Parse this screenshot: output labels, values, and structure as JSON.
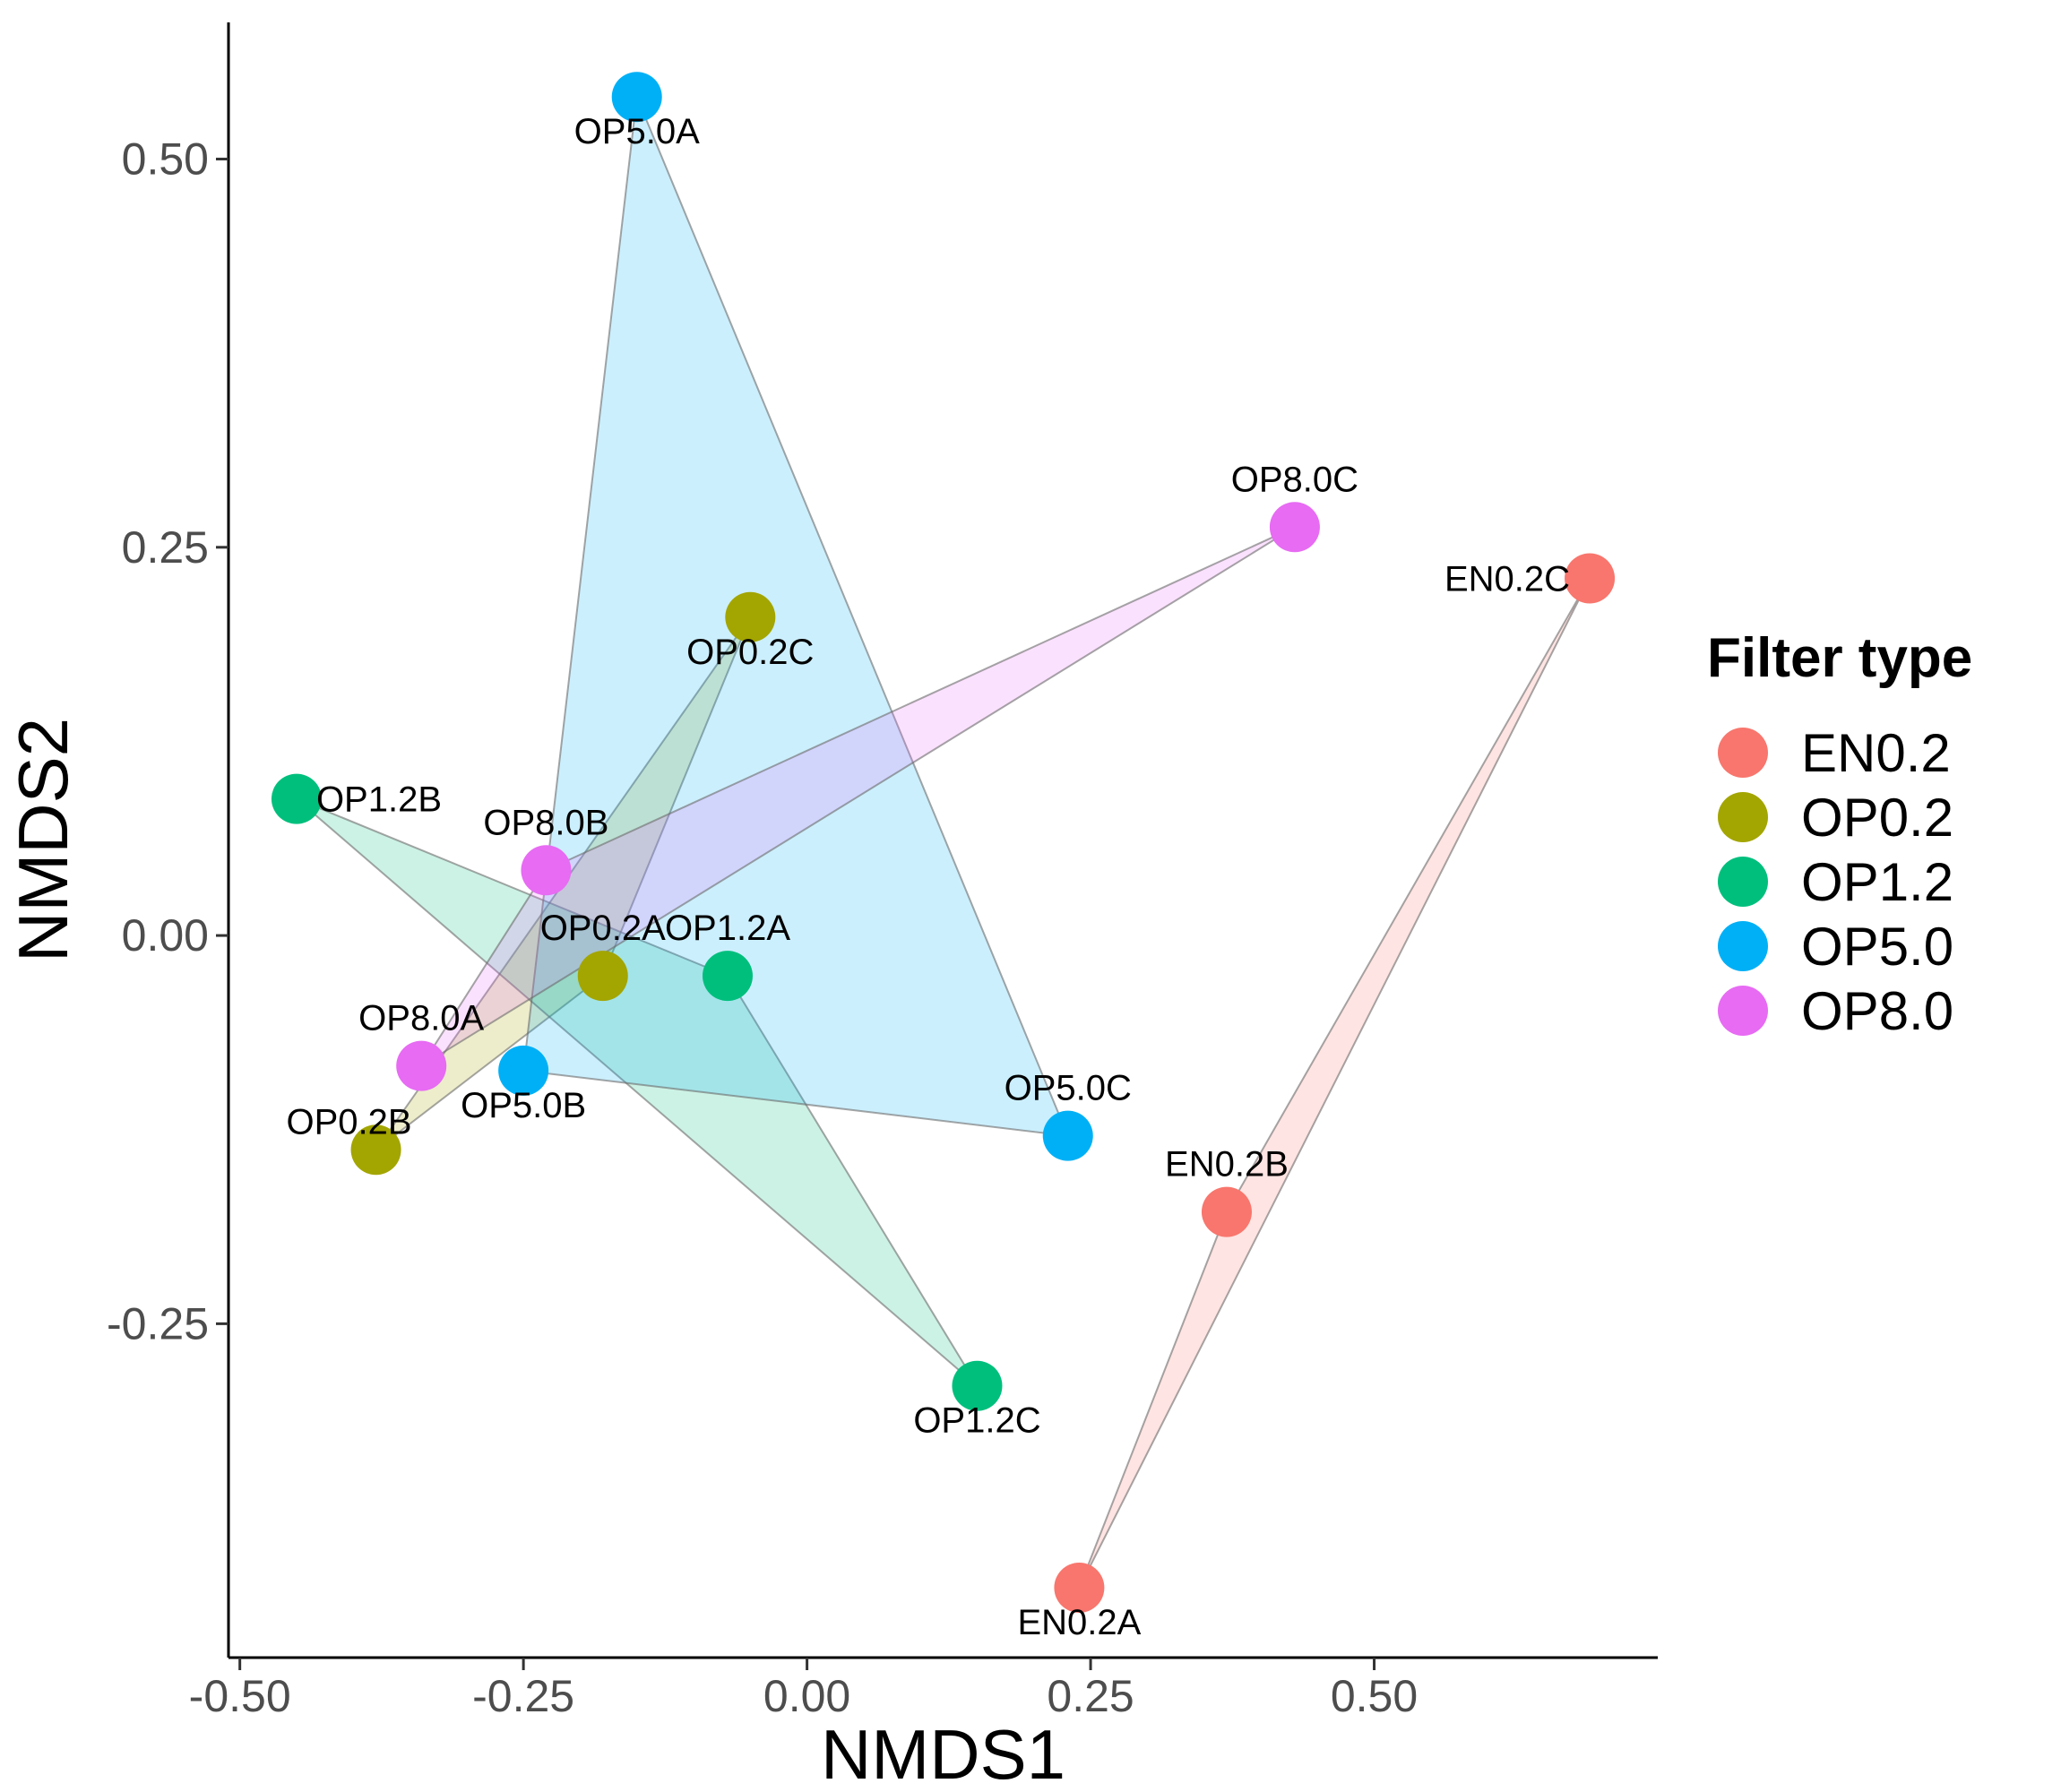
{
  "chart_data": {
    "type": "scatter",
    "xlabel": "NMDS1",
    "ylabel": "NMDS2",
    "xlim": [
      -0.51,
      0.75
    ],
    "ylim": [
      -0.465,
      0.588
    ],
    "x_ticks": [
      -0.5,
      -0.25,
      0.0,
      0.25,
      0.5
    ],
    "x_tick_labels": [
      "-0.50",
      "-0.25",
      "0.00",
      "0.25",
      "0.50"
    ],
    "y_ticks": [
      -0.25,
      0.0,
      0.25,
      0.5
    ],
    "y_tick_labels": [
      "-0.25",
      "0.00",
      "0.25",
      "0.50"
    ],
    "grid": false,
    "legend": {
      "title": "Filter type",
      "position": "right"
    },
    "series": [
      {
        "name": "EN0.2",
        "color": "#F8766D",
        "points": [
          {
            "label": "EN0.2A",
            "x": 0.24,
            "y": -0.42,
            "label_pos": "below"
          },
          {
            "label": "EN0.2B",
            "x": 0.37,
            "y": -0.178,
            "label_pos": "above"
          },
          {
            "label": "EN0.2C",
            "x": 0.69,
            "y": 0.23,
            "label_pos": "left"
          }
        ]
      },
      {
        "name": "OP0.2",
        "color": "#A3A500",
        "points": [
          {
            "label": "OP0.2A",
            "x": -0.18,
            "y": -0.026,
            "label_pos": "above"
          },
          {
            "label": "OP0.2B",
            "x": -0.38,
            "y": -0.138,
            "label_pos": "above-left"
          },
          {
            "label": "OP0.2C",
            "x": -0.05,
            "y": 0.205,
            "label_pos": "below"
          }
        ]
      },
      {
        "name": "OP1.2",
        "color": "#00BF7D",
        "points": [
          {
            "label": "OP1.2A",
            "x": -0.07,
            "y": -0.026,
            "label_pos": "above"
          },
          {
            "label": "OP1.2B",
            "x": -0.45,
            "y": 0.088,
            "label_pos": "right"
          },
          {
            "label": "OP1.2C",
            "x": 0.15,
            "y": -0.29,
            "label_pos": "below"
          }
        ]
      },
      {
        "name": "OP5.0",
        "color": "#00B0F6",
        "points": [
          {
            "label": "OP5.0A",
            "x": -0.15,
            "y": 0.54,
            "label_pos": "below"
          },
          {
            "label": "OP5.0B",
            "x": -0.25,
            "y": -0.087,
            "label_pos": "below"
          },
          {
            "label": "OP5.0C",
            "x": 0.23,
            "y": -0.129,
            "label_pos": "above"
          }
        ]
      },
      {
        "name": "OP8.0",
        "color": "#E76BF3",
        "points": [
          {
            "label": "OP8.0A",
            "x": -0.34,
            "y": -0.084,
            "label_pos": "above"
          },
          {
            "label": "OP8.0B",
            "x": -0.23,
            "y": 0.042,
            "label_pos": "above"
          },
          {
            "label": "OP8.0C",
            "x": 0.43,
            "y": 0.263,
            "label_pos": "above"
          }
        ]
      }
    ]
  }
}
